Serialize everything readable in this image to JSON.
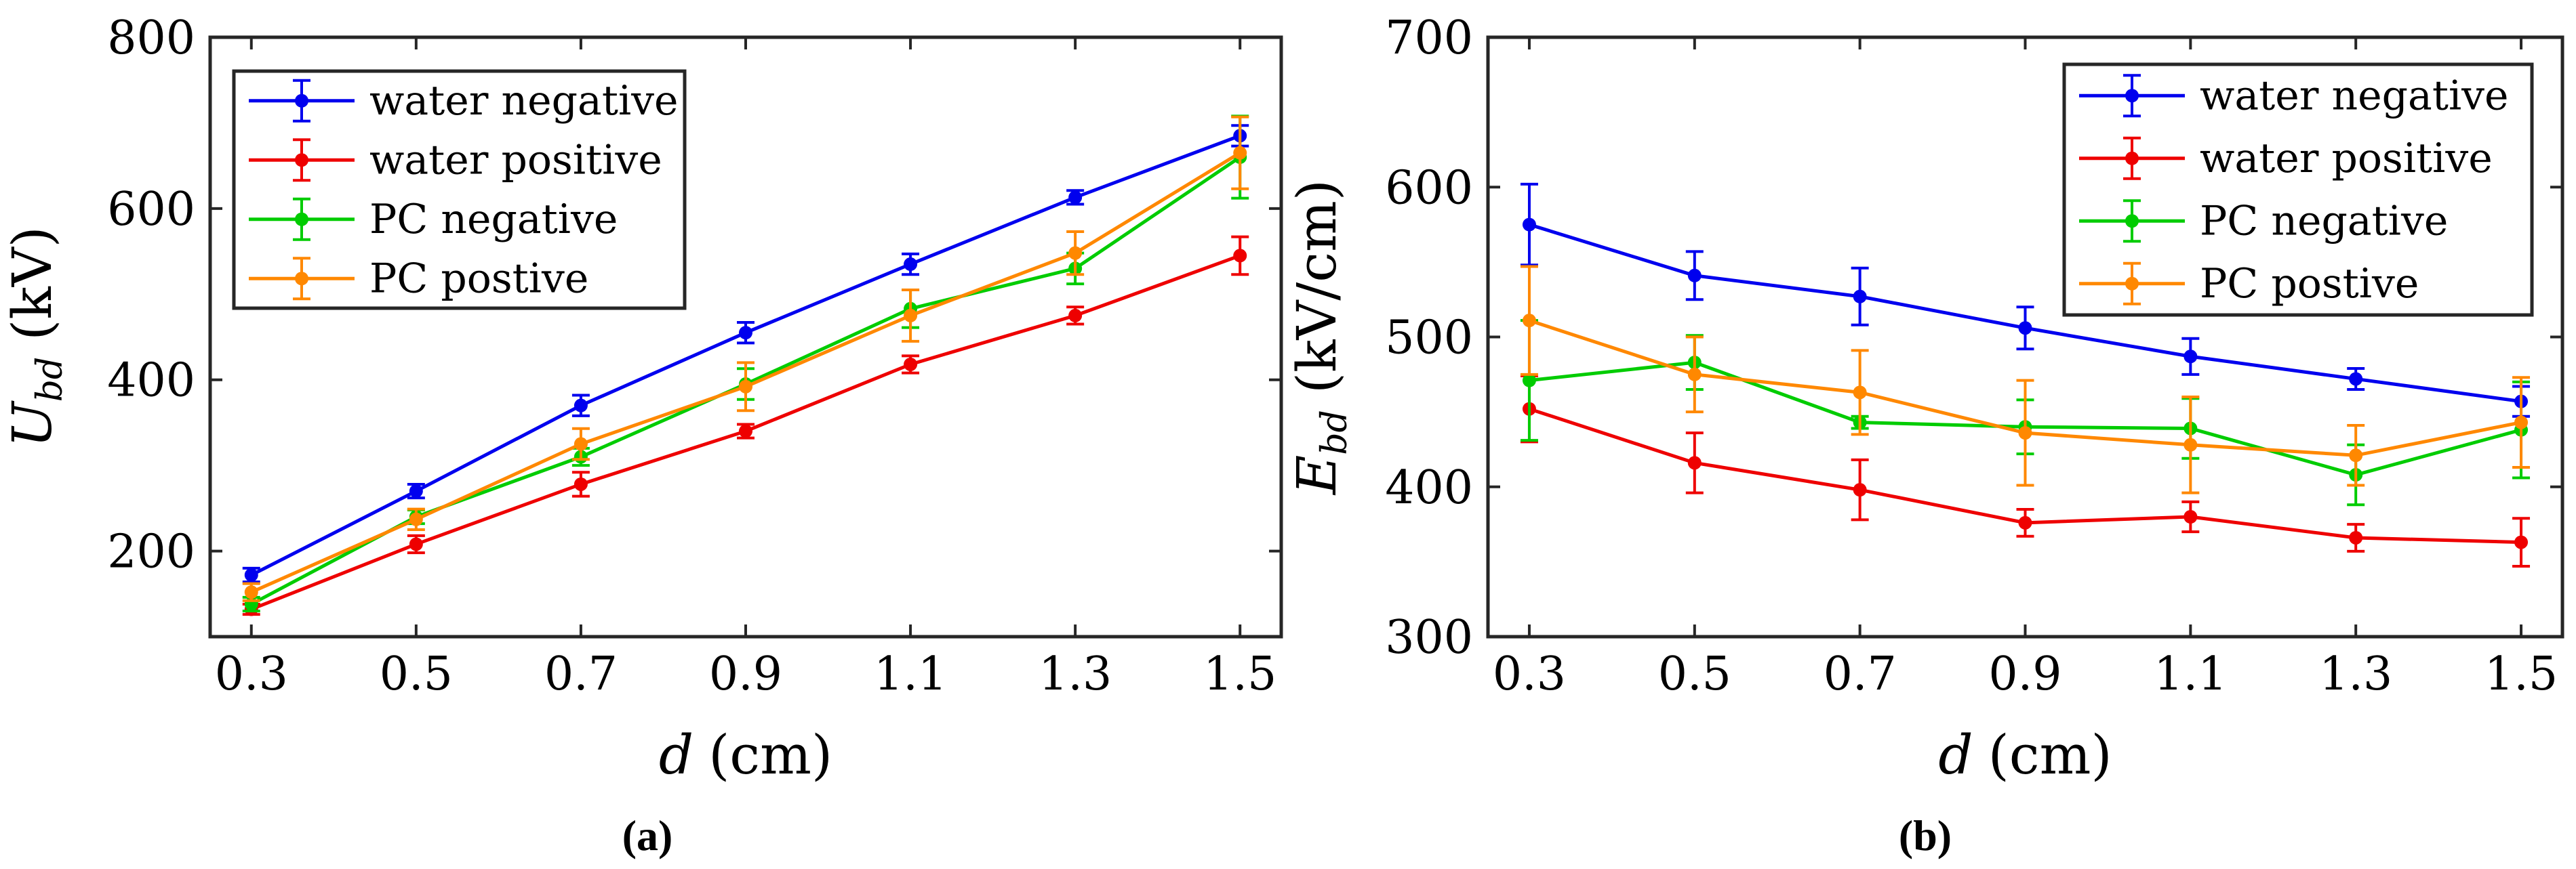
{
  "chart_data": [
    {
      "type": "line",
      "panel_label": "(a)",
      "xlabel_var": "d",
      "xlabel_unit": "(cm)",
      "ylabel_var": "U",
      "ylabel_sub": "bd",
      "ylabel_unit": "(kV)",
      "x": [
        0.3,
        0.5,
        0.7,
        0.9,
        1.1,
        1.3,
        1.5
      ],
      "x_tick_labels": [
        "0.3",
        "0.5",
        "0.7",
        "0.9",
        "1.1",
        "1.3",
        "1.5"
      ],
      "xlim": [
        0.25,
        1.55
      ],
      "ylim": [
        100,
        800
      ],
      "y_ticks": [
        200,
        400,
        600,
        800
      ],
      "y_tick_labels": [
        "200",
        "400",
        "600",
        "800"
      ],
      "legend_position": "top-left",
      "series": [
        {
          "name": "water negative",
          "color": "#0000ee",
          "values": [
            172,
            270,
            370,
            455,
            535,
            613,
            685
          ],
          "errors": [
            8,
            8,
            12,
            12,
            12,
            8,
            12
          ]
        },
        {
          "name": "water positive",
          "color": "#ee0000",
          "values": [
            132,
            208,
            278,
            340,
            418,
            475,
            545
          ],
          "errors": [
            6,
            10,
            14,
            8,
            10,
            10,
            22
          ]
        },
        {
          "name": "PC negative",
          "color": "#00cc00",
          "values": [
            138,
            240,
            310,
            395,
            483,
            530,
            660
          ],
          "errors": [
            8,
            8,
            10,
            18,
            22,
            18,
            48
          ]
        },
        {
          "name": "PC postive",
          "color": "#ff8800",
          "values": [
            152,
            237,
            325,
            392,
            475,
            548,
            665
          ],
          "errors": [
            10,
            12,
            18,
            28,
            30,
            25,
            42
          ]
        }
      ]
    },
    {
      "type": "line",
      "panel_label": "(b)",
      "xlabel_var": "d",
      "xlabel_unit": "(cm)",
      "ylabel_var": "E",
      "ylabel_sub": "bd",
      "ylabel_unit": "(kV/cm)",
      "x": [
        0.3,
        0.5,
        0.7,
        0.9,
        1.1,
        1.3,
        1.5
      ],
      "x_tick_labels": [
        "0.3",
        "0.5",
        "0.7",
        "0.9",
        "1.1",
        "1.3",
        "1.5"
      ],
      "xlim": [
        0.25,
        1.55
      ],
      "ylim": [
        300,
        700
      ],
      "y_ticks": [
        300,
        400,
        500,
        600,
        700
      ],
      "y_tick_labels": [
        "300",
        "400",
        "500",
        "600",
        "700"
      ],
      "legend_position": "top-right",
      "series": [
        {
          "name": "water negative",
          "color": "#0000ee",
          "values": [
            575,
            541,
            527,
            506,
            487,
            472,
            457
          ],
          "errors": [
            27,
            16,
            19,
            14,
            12,
            7,
            10
          ]
        },
        {
          "name": "water positive",
          "color": "#ee0000",
          "values": [
            452,
            416,
            398,
            376,
            380,
            366,
            363
          ],
          "errors": [
            22,
            20,
            20,
            9,
            10,
            9,
            16
          ]
        },
        {
          "name": "PC negative",
          "color": "#00cc00",
          "values": [
            471,
            483,
            443,
            440,
            439,
            408,
            438
          ],
          "errors": [
            40,
            18,
            4,
            18,
            20,
            20,
            32
          ]
        },
        {
          "name": "PC postive",
          "color": "#ff8800",
          "values": [
            511,
            475,
            463,
            436,
            428,
            421,
            443
          ],
          "errors": [
            36,
            25,
            28,
            35,
            32,
            20,
            30
          ]
        }
      ]
    }
  ]
}
